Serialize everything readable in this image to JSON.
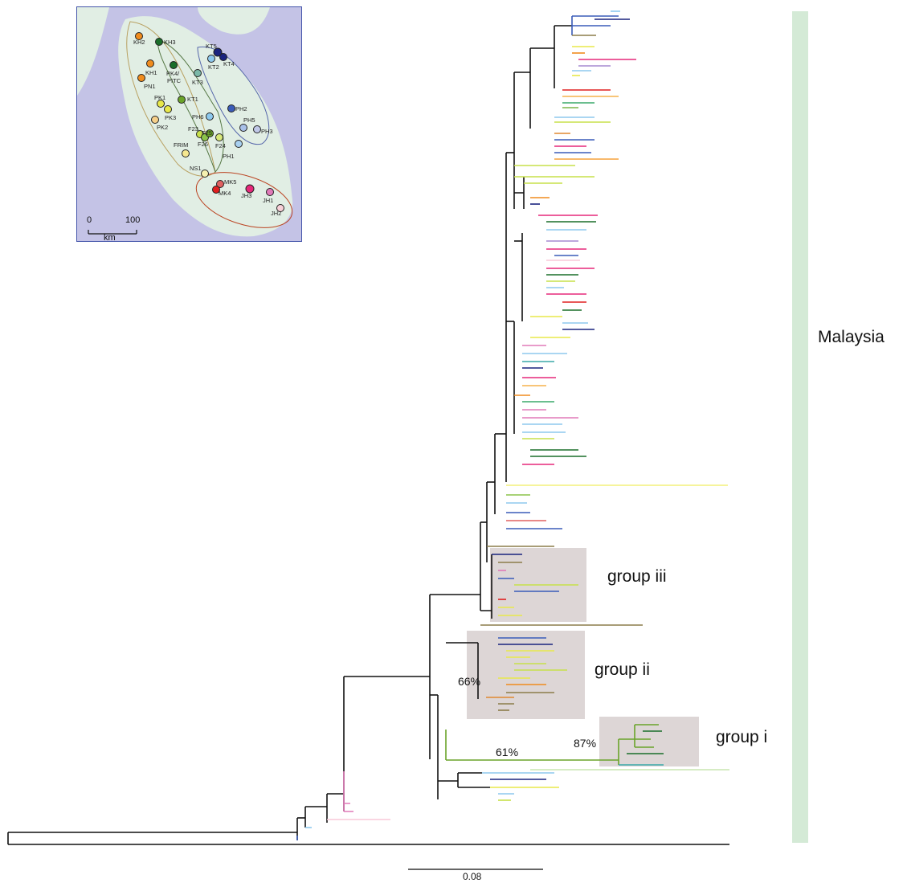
{
  "map": {
    "sites": [
      "KH2",
      "KH3",
      "KT5",
      "KT2",
      "KT4",
      "KH1",
      "PN1",
      "PK4/",
      "PITC",
      "KT3",
      "KT1",
      "PK1",
      "PK3",
      "PK2",
      "PH6",
      "PH2",
      "PH5",
      "PH3",
      "F23",
      "F25",
      "F26",
      "F24",
      "PH1",
      "FRIM",
      "NS1",
      "MK5",
      "MK4",
      "JH3",
      "JH1",
      "JH2"
    ],
    "scale_start": "0",
    "scale_end": "100",
    "scale_unit": "km"
  },
  "tree": {
    "groups": [
      "group iii",
      "group ii",
      "group i"
    ],
    "support_values": [
      "66%",
      "61%",
      "87%"
    ],
    "region_label": "Malaysia",
    "scale_bar": "0.08"
  },
  "colors": {
    "region_bar": "#d4ead6",
    "group_box": "#ddd6d6",
    "map_sea": "#c4c3e6",
    "map_land": "#e1eee4"
  }
}
